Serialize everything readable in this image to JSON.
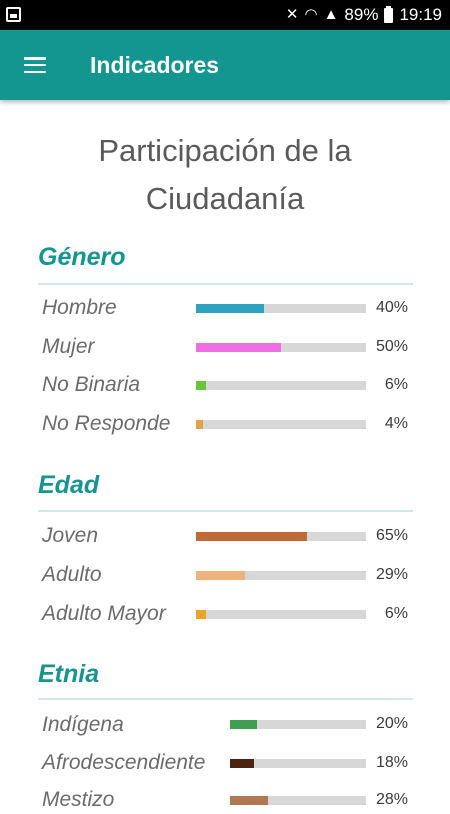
{
  "status_bar": {
    "battery_text": "89%",
    "time": "19:19",
    "icons": [
      "gallery-icon",
      "mute-icon",
      "wifi-icon",
      "signal-icon",
      "battery-icon"
    ]
  },
  "app_bar": {
    "title": "Indicadores",
    "menu_icon": "hamburger-menu-icon"
  },
  "page": {
    "title_line1": "Participación de la",
    "title_line2": "Ciudadanía"
  },
  "colors": {
    "primary": "#139690",
    "track": "#d7d7d7"
  },
  "sections": [
    {
      "title": "Género",
      "rows": [
        {
          "label": "Hombre",
          "value": 40,
          "pct_text": "40%",
          "color": "#2fa2c0"
        },
        {
          "label": "Mujer",
          "value": 50,
          "pct_text": "50%",
          "color": "#ee6fe3"
        },
        {
          "label": "No Binaria",
          "value": 6,
          "pct_text": "6%",
          "color": "#68c53a"
        },
        {
          "label": "No Responde",
          "value": 4,
          "pct_text": "4%",
          "color": "#e6a04a"
        }
      ]
    },
    {
      "title": "Edad",
      "rows": [
        {
          "label": "Joven",
          "value": 65,
          "pct_text": "65%",
          "color": "#c06a38"
        },
        {
          "label": "Adulto",
          "value": 29,
          "pct_text": "29%",
          "color": "#eeb27c"
        },
        {
          "label": "Adulto Mayor",
          "value": 6,
          "pct_text": "6%",
          "color": "#e9a42a"
        }
      ]
    },
    {
      "title": "Etnia",
      "rows": [
        {
          "label": "Indígena",
          "value": 20,
          "pct_text": "20%",
          "color": "#3f9e4f"
        },
        {
          "label": "Afrodescendiente",
          "value": 18,
          "pct_text": "18%",
          "color": "#4a2410"
        },
        {
          "label": "Mestizo",
          "value": 28,
          "pct_text": "28%",
          "color": "#b07850"
        }
      ]
    }
  ]
}
